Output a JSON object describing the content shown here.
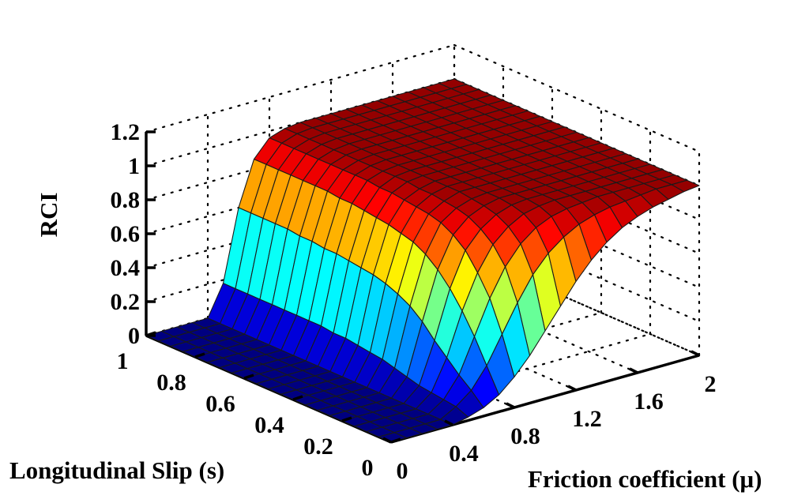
{
  "chart_data": {
    "type": "surface",
    "title": "",
    "zlabel": "RCI",
    "xlabel": "Friction coefficient (μ)",
    "ylabel": "Longitudinal Slip (s)",
    "x_ticks": [
      "0",
      "0.4",
      "0.8",
      "1.2",
      "1.6",
      "2"
    ],
    "y_ticks": [
      "0",
      "0.2",
      "0.4",
      "0.6",
      "0.8",
      "1"
    ],
    "z_ticks": [
      "0",
      "0.2",
      "0.4",
      "0.6",
      "0.8",
      "1",
      "1.2"
    ],
    "xlim": [
      0,
      2
    ],
    "ylim": [
      0,
      1
    ],
    "zlim": [
      0,
      1.2
    ],
    "x": [
      0.0,
      0.1,
      0.2,
      0.3,
      0.4,
      0.5,
      0.6,
      0.7,
      0.8,
      0.9,
      1.0,
      1.1,
      1.2,
      1.3,
      1.4,
      1.5,
      1.6,
      1.7,
      1.8,
      1.9,
      2.0
    ],
    "y": [
      0.0,
      0.05,
      0.1,
      0.15,
      0.2,
      0.25,
      0.3,
      0.35,
      0.4,
      0.45,
      0.5,
      0.55,
      0.6,
      0.65,
      0.7,
      0.75,
      0.8,
      0.85,
      0.9,
      0.95,
      1.0
    ],
    "z": [
      [
        0.0,
        0.0,
        0.0,
        0.0,
        0.0,
        0.02,
        0.05,
        0.1,
        0.18,
        0.28,
        0.4,
        0.52,
        0.64,
        0.74,
        0.82,
        0.88,
        0.92,
        0.95,
        0.97,
        0.99,
        1.0
      ],
      [
        0.0,
        0.0,
        0.0,
        0.0,
        0.0,
        0.05,
        0.12,
        0.24,
        0.4,
        0.56,
        0.7,
        0.8,
        0.87,
        0.92,
        0.95,
        0.97,
        0.98,
        0.99,
        1.0,
        1.0,
        1.0
      ],
      [
        0.0,
        0.0,
        0.0,
        0.0,
        0.0,
        0.06,
        0.18,
        0.38,
        0.58,
        0.74,
        0.85,
        0.92,
        0.96,
        0.98,
        0.99,
        1.0,
        1.0,
        1.0,
        1.0,
        1.0,
        1.0
      ],
      [
        0.0,
        0.0,
        0.0,
        0.0,
        0.0,
        0.07,
        0.25,
        0.5,
        0.7,
        0.84,
        0.92,
        0.97,
        0.99,
        1.0,
        1.0,
        1.0,
        1.0,
        1.0,
        1.0,
        1.0,
        1.0
      ],
      [
        0.0,
        0.0,
        0.0,
        0.0,
        0.0,
        0.08,
        0.32,
        0.6,
        0.8,
        0.9,
        0.96,
        0.99,
        1.0,
        1.0,
        1.0,
        1.0,
        1.0,
        1.0,
        1.0,
        1.0,
        1.0
      ],
      [
        0.0,
        0.0,
        0.0,
        0.0,
        0.0,
        0.1,
        0.4,
        0.68,
        0.86,
        0.94,
        0.98,
        1.0,
        1.0,
        1.0,
        1.0,
        1.0,
        1.0,
        1.0,
        1.0,
        1.0,
        1.0
      ],
      [
        0.0,
        0.0,
        0.0,
        0.0,
        0.0,
        0.12,
        0.46,
        0.74,
        0.9,
        0.96,
        0.99,
        1.0,
        1.0,
        1.0,
        1.0,
        1.0,
        1.0,
        1.0,
        1.0,
        1.0,
        1.0
      ],
      [
        0.0,
        0.0,
        0.0,
        0.0,
        0.0,
        0.14,
        0.5,
        0.78,
        0.92,
        0.97,
        1.0,
        1.0,
        1.0,
        1.0,
        1.0,
        1.0,
        1.0,
        1.0,
        1.0,
        1.0,
        1.0
      ],
      [
        0.0,
        0.0,
        0.0,
        0.0,
        0.0,
        0.15,
        0.53,
        0.8,
        0.93,
        0.98,
        1.0,
        1.0,
        1.0,
        1.0,
        1.0,
        1.0,
        1.0,
        1.0,
        1.0,
        1.0,
        1.0
      ],
      [
        0.0,
        0.0,
        0.0,
        0.0,
        0.0,
        0.16,
        0.55,
        0.82,
        0.94,
        0.98,
        1.0,
        1.0,
        1.0,
        1.0,
        1.0,
        1.0,
        1.0,
        1.0,
        1.0,
        1.0,
        1.0
      ],
      [
        0.0,
        0.0,
        0.0,
        0.0,
        0.0,
        0.17,
        0.56,
        0.83,
        0.95,
        0.99,
        1.0,
        1.0,
        1.0,
        1.0,
        1.0,
        1.0,
        1.0,
        1.0,
        1.0,
        1.0,
        1.0
      ],
      [
        0.0,
        0.0,
        0.0,
        0.0,
        0.0,
        0.17,
        0.57,
        0.84,
        0.95,
        0.99,
        1.0,
        1.0,
        1.0,
        1.0,
        1.0,
        1.0,
        1.0,
        1.0,
        1.0,
        1.0,
        1.0
      ],
      [
        0.0,
        0.0,
        0.0,
        0.0,
        0.0,
        0.18,
        0.58,
        0.85,
        0.96,
        0.99,
        1.0,
        1.0,
        1.0,
        1.0,
        1.0,
        1.0,
        1.0,
        1.0,
        1.0,
        1.0,
        1.0
      ],
      [
        0.0,
        0.0,
        0.0,
        0.0,
        0.0,
        0.18,
        0.58,
        0.85,
        0.96,
        0.99,
        1.0,
        1.0,
        1.0,
        1.0,
        1.0,
        1.0,
        1.0,
        1.0,
        1.0,
        1.0,
        1.0
      ],
      [
        0.0,
        0.0,
        0.0,
        0.0,
        0.0,
        0.18,
        0.59,
        0.86,
        0.96,
        0.99,
        1.0,
        1.0,
        1.0,
        1.0,
        1.0,
        1.0,
        1.0,
        1.0,
        1.0,
        1.0,
        1.0
      ],
      [
        0.0,
        0.0,
        0.0,
        0.0,
        0.0,
        0.18,
        0.59,
        0.86,
        0.96,
        0.99,
        1.0,
        1.0,
        1.0,
        1.0,
        1.0,
        1.0,
        1.0,
        1.0,
        1.0,
        1.0,
        1.0
      ],
      [
        0.0,
        0.0,
        0.0,
        0.0,
        0.0,
        0.18,
        0.6,
        0.86,
        0.96,
        0.99,
        1.0,
        1.0,
        1.0,
        1.0,
        1.0,
        1.0,
        1.0,
        1.0,
        1.0,
        1.0,
        1.0
      ],
      [
        0.0,
        0.0,
        0.0,
        0.0,
        0.0,
        0.18,
        0.6,
        0.86,
        0.96,
        0.99,
        1.0,
        1.0,
        1.0,
        1.0,
        1.0,
        1.0,
        1.0,
        1.0,
        1.0,
        1.0,
        1.0
      ],
      [
        0.0,
        0.0,
        0.0,
        0.0,
        0.0,
        0.18,
        0.6,
        0.86,
        0.96,
        0.99,
        1.0,
        1.0,
        1.0,
        1.0,
        1.0,
        1.0,
        1.0,
        1.0,
        1.0,
        1.0,
        1.0
      ],
      [
        0.0,
        0.0,
        0.0,
        0.0,
        0.0,
        0.18,
        0.6,
        0.86,
        0.96,
        0.99,
        1.0,
        1.0,
        1.0,
        1.0,
        1.0,
        1.0,
        1.0,
        1.0,
        1.0,
        1.0,
        1.0
      ],
      [
        0.0,
        0.0,
        0.0,
        0.0,
        0.0,
        0.18,
        0.6,
        0.86,
        0.96,
        0.99,
        1.0,
        1.0,
        1.0,
        1.0,
        1.0,
        1.0,
        1.0,
        1.0,
        1.0,
        1.0,
        1.0
      ]
    ],
    "colormap": "jet",
    "grid": true
  }
}
